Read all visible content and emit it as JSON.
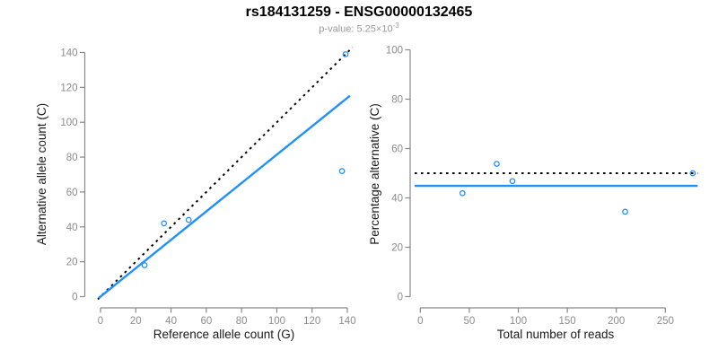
{
  "header": {
    "title": "rs184131259 - ENSG00000132465",
    "subtitle_prefix": "p-value: 5.25×10",
    "subtitle_exponent": "-3"
  },
  "colors": {
    "accent_blue": "#1E90FF",
    "dotted_line_black": "#000000",
    "axis_gray": "#888888",
    "tick_label_gray": "#8c8c8c",
    "axis_title_color": "#1a1a1a",
    "subtitle_gray": "#999999",
    "title_color": "#000000",
    "background": "#ffffff"
  },
  "chart_data": [
    {
      "type": "scatter",
      "name": "allele-counts",
      "title": "",
      "xlabel": "Reference allele count (G)",
      "ylabel": "Alternative allele count (C)",
      "xlim": [
        0,
        140
      ],
      "ylim": [
        0,
        140
      ],
      "xticks": [
        0,
        20,
        40,
        60,
        80,
        100,
        120,
        140
      ],
      "yticks": [
        0,
        20,
        40,
        60,
        80,
        100,
        120,
        140
      ],
      "grid": false,
      "legend": null,
      "points": [
        [
          25,
          18
        ],
        [
          36,
          42
        ],
        [
          50,
          44
        ],
        [
          137,
          72
        ],
        [
          139,
          139
        ]
      ],
      "lines": [
        {
          "name": "expected-identity",
          "style": "dotted",
          "color": "#000000",
          "x1": -1.5,
          "y1": -1.5,
          "x2": 143,
          "y2": 143,
          "meaning": "expected y = x (50% ratio)"
        },
        {
          "name": "fitted-ratio",
          "style": "solid",
          "color": "#1E90FF",
          "x1": -1,
          "y1": -0.8,
          "x2": 141.5,
          "y2": 115.2,
          "meaning": "observed ratio slope 0.814"
        }
      ]
    },
    {
      "type": "scatter",
      "name": "percentage-vs-reads",
      "title": "",
      "xlabel": "Total number of reads",
      "ylabel": "Percentage alternative (C)",
      "xlim": [
        0,
        250
      ],
      "ylim": [
        0,
        100
      ],
      "xticks": [
        0,
        50,
        100,
        150,
        200,
        250
      ],
      "yticks": [
        0,
        20,
        40,
        60,
        80,
        100
      ],
      "grid": false,
      "legend": null,
      "points": [
        [
          43,
          41.9
        ],
        [
          78,
          53.8
        ],
        [
          94,
          46.8
        ],
        [
          209,
          34.4
        ],
        [
          278,
          50
        ]
      ],
      "lines": [
        {
          "name": "expected-50pct",
          "style": "dotted",
          "color": "#000000",
          "x1": -5.8,
          "y1": 50,
          "x2": 283,
          "y2": 50,
          "meaning": "expected 50%"
        },
        {
          "name": "observed-percentage",
          "style": "solid",
          "color": "#1E90FF",
          "x1": -5.8,
          "y1": 44.9,
          "x2": 283,
          "y2": 44.9,
          "meaning": "observed overall 44.9%"
        }
      ]
    }
  ]
}
